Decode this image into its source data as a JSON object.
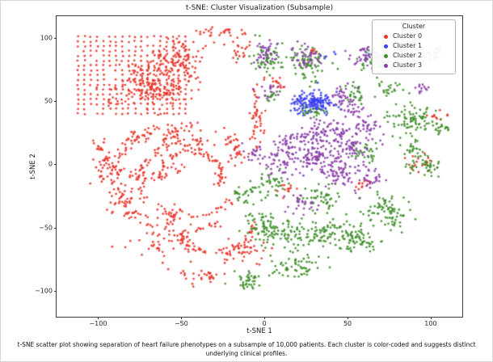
{
  "figure": {
    "caption": "t-SNE scatter plot showing separation of heart failure phenotypes on a subsample of 10,000 patients. Each cluster is color-coded and suggests distinct underlying clinical profiles."
  },
  "chart_data": {
    "type": "scatter",
    "title": "t-SNE: Cluster Visualization (Subsample)",
    "xlabel": "t-SNE 1",
    "ylabel": "t-SNE 2",
    "xlim": [
      -125,
      119
    ],
    "ylim": [
      -120.5,
      117
    ],
    "xticks": [
      -100,
      -50,
      0,
      50,
      100
    ],
    "yticks": [
      -100,
      -50,
      0,
      50,
      100
    ],
    "grid": false,
    "marker_radius_px": 1.4,
    "legend": {
      "title": "Cluster",
      "position": "upper right",
      "entries": [
        {
          "label": "Cluster 0",
          "color": "#e8352b"
        },
        {
          "label": "Cluster 1",
          "color": "#3a3ff0"
        },
        {
          "label": "Cluster 2",
          "color": "#3f8f2a"
        },
        {
          "label": "Cluster 3",
          "color": "#8a3fa8"
        }
      ]
    },
    "series": [
      {
        "name": "Cluster 0",
        "color": "#e8352b",
        "grids": [
          {
            "x0": -112,
            "x1": -46,
            "y0": 40,
            "y1": 102,
            "step": 3.8,
            "jitter": 0.5,
            "drop": 0.12
          }
        ],
        "arcs": [
          {
            "cx": -48,
            "cy": -10,
            "r": 42,
            "a0": 120,
            "a1": 300,
            "n": 90,
            "jitter": 2
          },
          {
            "cx": -45,
            "cy": -12,
            "r": 30,
            "a0": 60,
            "a1": 330,
            "n": 100,
            "jitter": 1.8
          },
          {
            "cx": -44,
            "cy": -8,
            "r": 18,
            "a0": -30,
            "a1": 200,
            "n": 70,
            "jitter": 1.5
          },
          {
            "cx": -30,
            "cy": -45,
            "r": 25,
            "a0": 150,
            "a1": 360,
            "n": 70,
            "jitter": 2
          },
          {
            "cx": -70,
            "cy": 20,
            "r": 30,
            "a0": 180,
            "a1": 330,
            "n": 60,
            "jitter": 2
          }
        ],
        "blobs": [
          {
            "x": -68,
            "y": 62,
            "sx": 12,
            "sy": 9,
            "n": 200
          },
          {
            "x": -52,
            "y": 82,
            "sx": 8,
            "sy": 8,
            "n": 90
          },
          {
            "x": -30,
            "y": 103,
            "sx": 6,
            "sy": 3.5,
            "n": 25
          },
          {
            "x": -14,
            "y": 91,
            "sx": 3,
            "sy": 4,
            "n": 18
          },
          {
            "x": -12,
            "y": 104,
            "sx": 1.5,
            "sy": 1.5,
            "n": 4
          },
          {
            "x": -58,
            "y": 25,
            "sx": 12,
            "sy": 5,
            "n": 60
          },
          {
            "x": -98,
            "y": -5,
            "sx": 4,
            "sy": 7,
            "n": 22
          },
          {
            "x": -85,
            "y": -30,
            "sx": 5,
            "sy": 8,
            "n": 30
          },
          {
            "x": -60,
            "y": -60,
            "sx": 12,
            "sy": 8,
            "n": 50
          },
          {
            "x": -15,
            "y": -70,
            "sx": 8,
            "sy": 5,
            "n": 40
          },
          {
            "x": -38,
            "y": -88,
            "sx": 6,
            "sy": 4,
            "n": 30
          },
          {
            "x": -4,
            "y": 38,
            "sx": 2.5,
            "sy": 12,
            "n": 45
          },
          {
            "x": -18,
            "y": 12,
            "sx": 4,
            "sy": 8,
            "n": 35
          },
          {
            "x": 8,
            "y": 65,
            "sx": 3,
            "sy": 3,
            "n": 15
          },
          {
            "x": 95,
            "y": 2,
            "sx": 4,
            "sy": 4,
            "n": 20
          },
          {
            "x": 103,
            "y": 38,
            "sx": 3,
            "sy": 3,
            "n": 12
          },
          {
            "x": 104,
            "y": 90,
            "sx": 2,
            "sy": 2,
            "n": 6
          },
          {
            "x": 60,
            "y": -15,
            "sx": 3,
            "sy": 3,
            "n": 12
          },
          {
            "x": 30,
            "y": 90,
            "sx": 2,
            "sy": 2,
            "n": 8
          },
          {
            "x": 14,
            "y": -20,
            "sx": 3,
            "sy": 3,
            "n": 12
          }
        ]
      },
      {
        "name": "Cluster 1",
        "color": "#3a3ff0",
        "blobs": [
          {
            "x": 30,
            "y": 49,
            "sx": 6,
            "sy": 4,
            "n": 140
          },
          {
            "x": 23,
            "y": 44,
            "sx": 3,
            "sy": 3,
            "n": 25
          },
          {
            "x": 66,
            "y": 88,
            "sx": 2,
            "sy": 2,
            "n": 6
          },
          {
            "x": 40,
            "y": 86,
            "sx": 2,
            "sy": 2,
            "n": 6
          }
        ]
      },
      {
        "name": "Cluster 2",
        "color": "#3f8f2a",
        "blobs": [
          {
            "x": 1,
            "y": 84,
            "sx": 5,
            "sy": 6,
            "n": 60
          },
          {
            "x": 26,
            "y": 80,
            "sx": 6,
            "sy": 7,
            "n": 70
          },
          {
            "x": 68,
            "y": 82,
            "sx": 6,
            "sy": 6,
            "n": 60
          },
          {
            "x": 101,
            "y": 86,
            "sx": 3,
            "sy": 3,
            "n": 18
          },
          {
            "x": 88,
            "y": 35,
            "sx": 7,
            "sy": 6,
            "n": 80
          },
          {
            "x": 105,
            "y": 28,
            "sx": 3,
            "sy": 4,
            "n": 20
          },
          {
            "x": 97,
            "y": -2,
            "sx": 5,
            "sy": 4,
            "n": 40
          },
          {
            "x": 90,
            "y": 12,
            "sx": 4,
            "sy": 4,
            "n": 25
          },
          {
            "x": 70,
            "y": -35,
            "sx": 6,
            "sy": 6,
            "n": 55
          },
          {
            "x": 80,
            "y": -44,
            "sx": 4,
            "sy": 4,
            "n": 25
          },
          {
            "x": 58,
            "y": -62,
            "sx": 5,
            "sy": 4,
            "n": 40
          },
          {
            "x": 45,
            "y": -55,
            "sx": 10,
            "sy": 7,
            "n": 85
          },
          {
            "x": 18,
            "y": -55,
            "sx": 9,
            "sy": 7,
            "n": 85
          },
          {
            "x": -2,
            "y": -48,
            "sx": 6,
            "sy": 6,
            "n": 55
          },
          {
            "x": 20,
            "y": -80,
            "sx": 8,
            "sy": 5,
            "n": 55
          },
          {
            "x": -8,
            "y": -92,
            "sx": 6,
            "sy": 4,
            "n": 40
          },
          {
            "x": 35,
            "y": -25,
            "sx": 6,
            "sy": 5,
            "n": 45
          },
          {
            "x": 5,
            "y": -15,
            "sx": 5,
            "sy": 5,
            "n": 40
          },
          {
            "x": -12,
            "y": -25,
            "sx": 4,
            "sy": 4,
            "n": 28
          },
          {
            "x": 55,
            "y": 55,
            "sx": 4,
            "sy": 4,
            "n": 28
          },
          {
            "x": 75,
            "y": 60,
            "sx": 4,
            "sy": 4,
            "n": 22
          },
          {
            "x": 60,
            "y": 8,
            "sx": 4,
            "sy": 4,
            "n": 28
          },
          {
            "x": 30,
            "y": 42,
            "sx": 4,
            "sy": 3,
            "n": 22
          },
          {
            "x": 5,
            "y": 55,
            "sx": 3,
            "sy": 3,
            "n": 15
          }
        ]
      },
      {
        "name": "Cluster 3",
        "color": "#8a3fa8",
        "blobs": [
          {
            "x": 2,
            "y": 88,
            "sx": 4,
            "sy": 5,
            "n": 35
          },
          {
            "x": 25,
            "y": 85,
            "sx": 5,
            "sy": 5,
            "n": 40
          },
          {
            "x": 60,
            "y": 86,
            "sx": 5,
            "sy": 5,
            "n": 40
          },
          {
            "x": 94,
            "y": 60,
            "sx": 2.5,
            "sy": 2.5,
            "n": 12
          },
          {
            "x": 47,
            "y": 52,
            "sx": 5,
            "sy": 5,
            "n": 40
          },
          {
            "x": 2,
            "y": 58,
            "sx": 3,
            "sy": 3,
            "n": 16
          },
          {
            "x": 35,
            "y": 25,
            "sx": 8,
            "sy": 6,
            "n": 75
          },
          {
            "x": 50,
            "y": 15,
            "sx": 8,
            "sy": 7,
            "n": 85
          },
          {
            "x": 28,
            "y": 5,
            "sx": 7,
            "sy": 6,
            "n": 75
          },
          {
            "x": 45,
            "y": -8,
            "sx": 8,
            "sy": 6,
            "n": 75
          },
          {
            "x": 15,
            "y": 15,
            "sx": 5,
            "sy": 5,
            "n": 45
          },
          {
            "x": 10,
            "y": 0,
            "sx": 5,
            "sy": 5,
            "n": 38
          },
          {
            "x": 62,
            "y": 30,
            "sx": 4,
            "sy": 4,
            "n": 32
          },
          {
            "x": 20,
            "y": -30,
            "sx": 5,
            "sy": 4,
            "n": 28
          },
          {
            "x": 65,
            "y": -12,
            "sx": 4,
            "sy": 4,
            "n": 24
          },
          {
            "x": -5,
            "y": 8,
            "sx": 4,
            "sy": 4,
            "n": 22
          },
          {
            "x": 55,
            "y": 40,
            "sx": 3,
            "sy": 3,
            "n": 18
          }
        ]
      }
    ]
  }
}
